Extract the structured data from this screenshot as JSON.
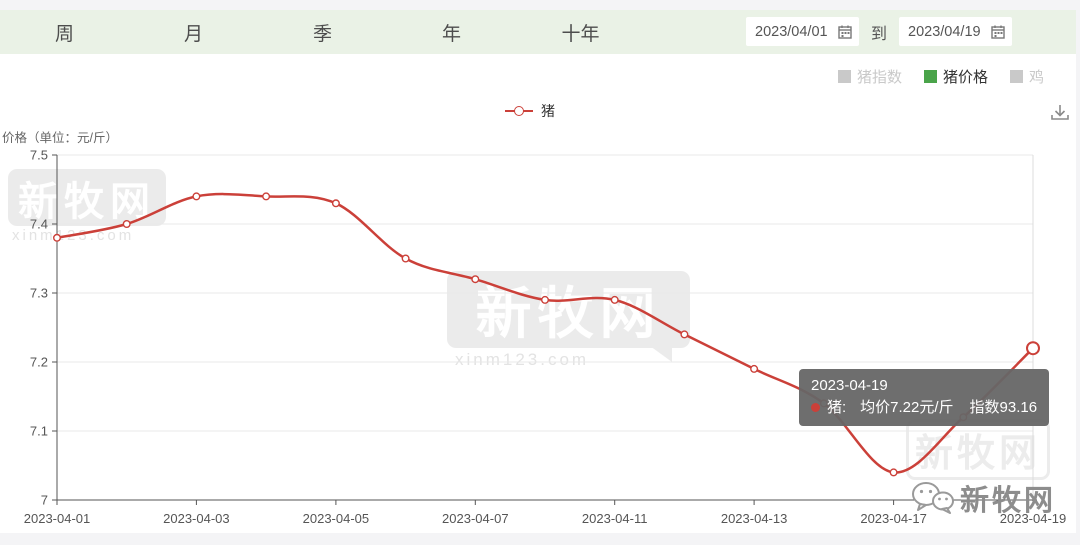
{
  "toolbar": {
    "tabs": [
      {
        "label": "周"
      },
      {
        "label": "月"
      },
      {
        "label": "季"
      },
      {
        "label": "年"
      },
      {
        "label": "十年"
      }
    ],
    "date_from": "2023/04/01",
    "to_label": "到",
    "date_to": "2023/04/19"
  },
  "series_legend": {
    "items": [
      {
        "label": "猪指数",
        "color": "#c9c9c9",
        "active": false
      },
      {
        "label": "猪价格",
        "color": "#4aa44a",
        "active": true
      },
      {
        "label": "鸡",
        "color": "#c9c9c9",
        "active": false
      }
    ]
  },
  "chart_legend": {
    "label": "猪",
    "color": "#cb4039"
  },
  "chart_data": {
    "type": "line",
    "title": "",
    "ylabel": "价格（单位：元/斤）",
    "x": [
      "2023-04-01",
      "2023-04-02",
      "2023-04-03",
      "2023-04-04",
      "2023-04-05",
      "2023-04-06",
      "2023-04-07",
      "2023-04-10",
      "2023-04-11",
      "2023-04-12",
      "2023-04-13",
      "2023-04-14",
      "2023-04-17",
      "2023-04-18",
      "2023-04-19"
    ],
    "series": [
      {
        "name": "猪",
        "color": "#cb4039",
        "values": [
          7.38,
          7.4,
          7.44,
          7.44,
          7.43,
          7.35,
          7.32,
          7.29,
          7.29,
          7.24,
          7.19,
          7.14,
          7.04,
          7.12,
          7.22
        ]
      }
    ],
    "ylim": [
      7,
      7.5
    ],
    "yticks": [
      {
        "value": 7,
        "label": "7"
      },
      {
        "value": 7.1,
        "label": "7.1"
      },
      {
        "value": 7.2,
        "label": "7.2"
      },
      {
        "value": 7.3,
        "label": "7.3"
      },
      {
        "value": 7.4,
        "label": "7.4"
      },
      {
        "value": 7.5,
        "label": "7.5"
      }
    ],
    "xticks": [
      {
        "index": 0,
        "label": "2023-04-01"
      },
      {
        "index": 2,
        "label": "2023-04-03"
      },
      {
        "index": 4,
        "label": "2023-04-05"
      },
      {
        "index": 6,
        "label": "2023-04-07"
      },
      {
        "index": 8,
        "label": "2023-04-11"
      },
      {
        "index": 10,
        "label": "2023-04-13"
      },
      {
        "index": 12,
        "label": "2023-04-17"
      },
      {
        "index": 14,
        "label": "2023-04-19"
      }
    ],
    "grid": true,
    "legend_position": "top-center",
    "highlight": {
      "index": 14
    }
  },
  "tooltip": {
    "date": "2023-04-19",
    "series_label": "猪:",
    "price_text": "均价7.22元/斤",
    "index_text": "指数93.16"
  },
  "watermarks": {
    "logo_text": "新牧网",
    "site": "xinm123.com",
    "corner_text": "新牧网"
  }
}
